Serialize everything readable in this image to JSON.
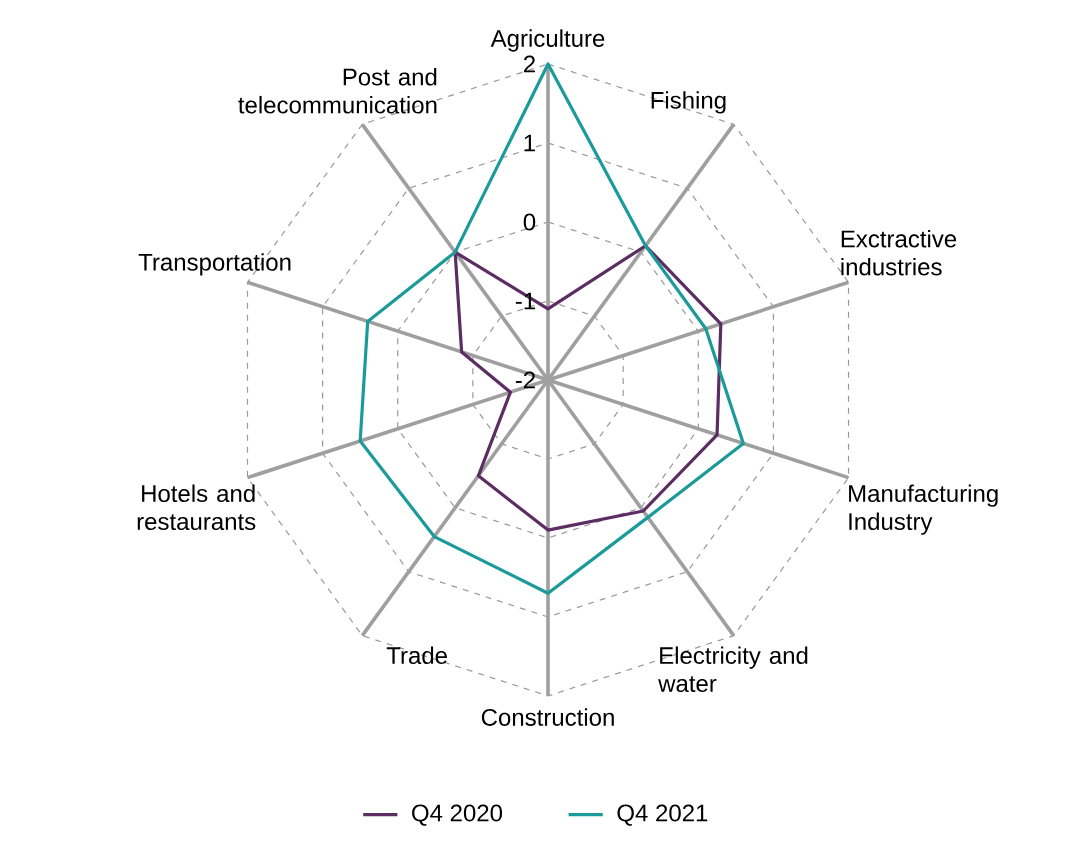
{
  "chart_data": {
    "type": "radar",
    "categories": [
      "Agriculture",
      "Fishing",
      "Exctractive industries",
      "Manufacturing Industry",
      "Electricity and water",
      "Construction",
      "Trade",
      "Hotels and restaurants",
      "Transportation",
      "Post and telecommunication"
    ],
    "series": [
      {
        "name": "Q4 2020",
        "color": "#5c2d62",
        "values": [
          -1.1,
          0.1,
          0.3,
          0.25,
          0.05,
          -0.1,
          -0.5,
          -1.5,
          -0.85,
          0.0
        ]
      },
      {
        "name": "Q4 2021",
        "color": "#1b9a9a",
        "values": [
          2.0,
          0.1,
          0.1,
          0.6,
          0.15,
          0.7,
          0.45,
          0.5,
          0.4,
          0.0
        ]
      }
    ],
    "ylim": [
      -2,
      2
    ],
    "yticks": [
      -2,
      -1,
      0,
      1,
      2
    ],
    "grid": true,
    "legend": "bottom"
  }
}
